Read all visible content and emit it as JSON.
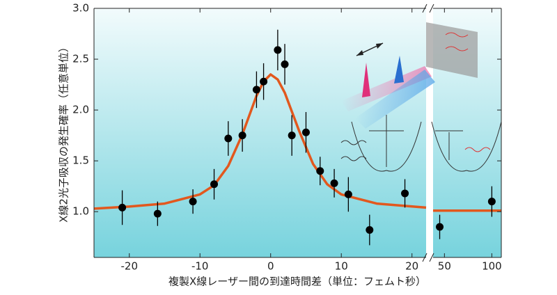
{
  "chart_data": {
    "type": "scatter",
    "xlabel": "複製X線レーザー間の到達時間差（単位：フェムト秒）",
    "ylabel": "X線2光子吸収の発生確率（任意単位）",
    "xsegments": [
      [
        -25,
        22
      ],
      [
        38,
        110
      ]
    ],
    "xticks": [
      -20,
      -10,
      0,
      10,
      20,
      50,
      100
    ],
    "ylim": [
      0.55,
      3.0
    ],
    "yticks": [
      {
        "value": 1.0,
        "label": "1.0"
      },
      {
        "value": 1.5,
        "label": "1.5"
      },
      {
        "value": 2.0,
        "label": "2.0"
      },
      {
        "value": 2.5,
        "label": "2.5"
      },
      {
        "value": 3.0,
        "label": "3.0"
      }
    ],
    "series": [
      {
        "type": "scatter",
        "color": "#000000",
        "x": [
          -21,
          -16,
          -11,
          -8,
          -6,
          -4,
          -2,
          -1,
          1,
          2,
          3,
          5,
          7,
          9,
          11,
          14,
          19,
          45,
          100
        ],
        "values": [
          1.04,
          0.98,
          1.1,
          1.27,
          1.72,
          1.75,
          2.2,
          2.28,
          2.59,
          2.45,
          1.75,
          1.78,
          1.4,
          1.28,
          1.17,
          0.82,
          1.18,
          0.85,
          1.1
        ],
        "errors": [
          0.17,
          0.12,
          0.12,
          0.15,
          0.17,
          0.16,
          0.18,
          0.18,
          0.2,
          0.2,
          0.2,
          0.2,
          0.14,
          0.14,
          0.17,
          0.15,
          0.14,
          0.12,
          0.15
        ]
      },
      {
        "type": "line",
        "color": "#e2581e",
        "x": [
          -25,
          -20,
          -15,
          -10,
          -8,
          -6,
          -4,
          -2,
          -1,
          0,
          1,
          2,
          4,
          6,
          8,
          10,
          15,
          22,
          30,
          38,
          110
        ],
        "values": [
          1.03,
          1.05,
          1.08,
          1.17,
          1.26,
          1.45,
          1.76,
          2.14,
          2.28,
          2.35,
          2.3,
          2.17,
          1.8,
          1.47,
          1.27,
          1.17,
          1.08,
          1.04,
          null,
          1.01,
          1.01
        ]
      }
    ]
  }
}
